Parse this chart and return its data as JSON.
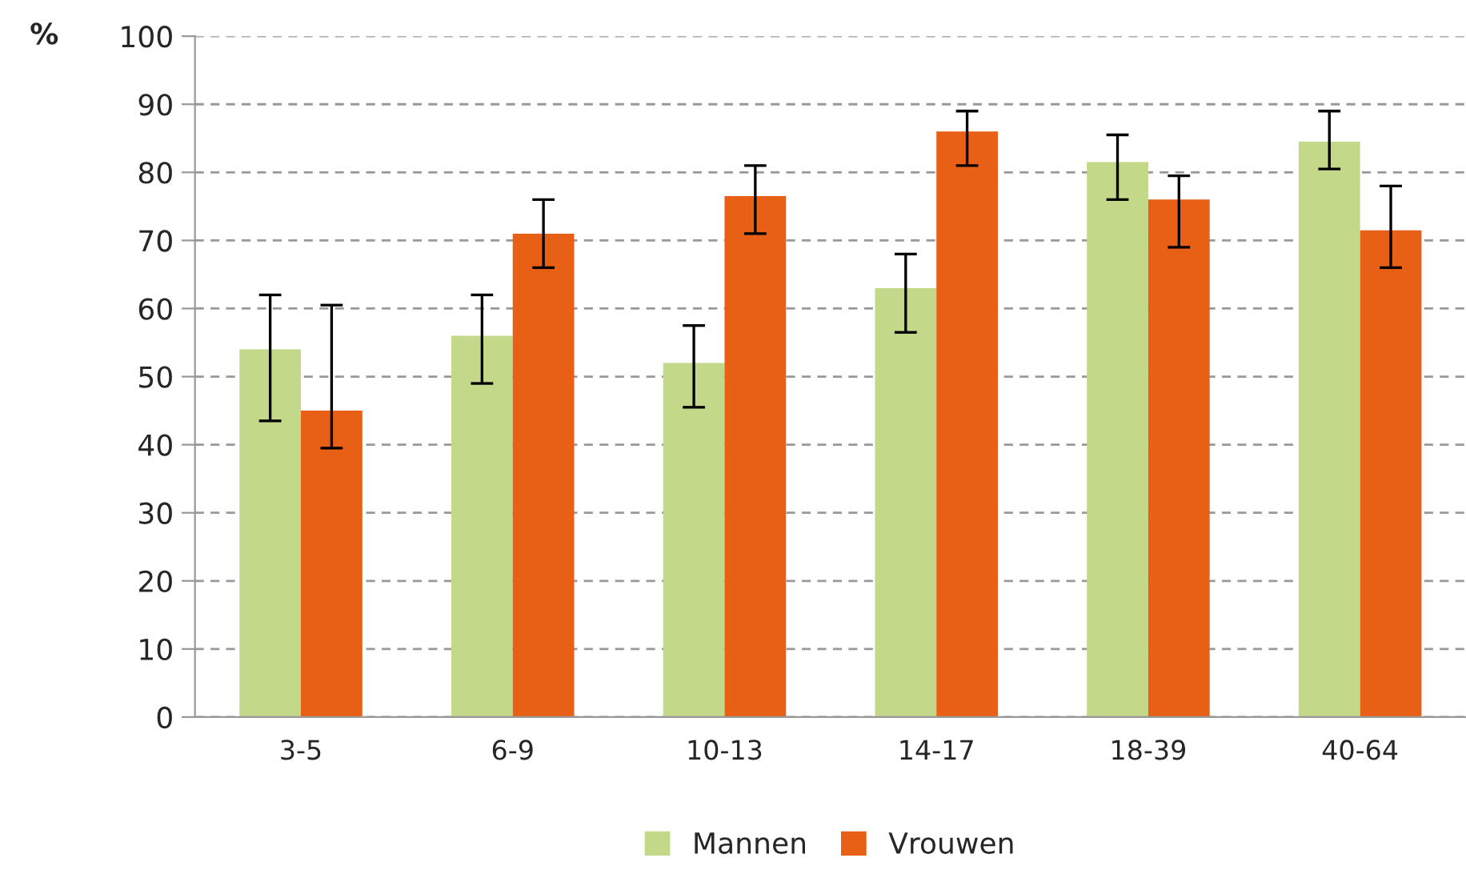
{
  "chart_data": {
    "type": "bar",
    "ylabel": "%",
    "categories": [
      "3-5",
      "6-9",
      "10-13",
      "14-17",
      "18-39",
      "40-64"
    ],
    "series": [
      {
        "name": "Mannen",
        "color": "#c3d888",
        "values": [
          54,
          56,
          52,
          63,
          81.5,
          84.5
        ],
        "errors": [
          [
            43.5,
            62
          ],
          [
            49,
            62
          ],
          [
            45.5,
            57.5
          ],
          [
            56.5,
            68
          ],
          [
            76,
            85.5
          ],
          [
            80.5,
            89
          ]
        ]
      },
      {
        "name": "Vrouwen",
        "color": "#e85f16",
        "values": [
          45,
          71,
          76.5,
          86,
          76,
          71.5
        ],
        "errors": [
          [
            39.5,
            60.5
          ],
          [
            66,
            76
          ],
          [
            71,
            81
          ],
          [
            81,
            89
          ],
          [
            69,
            79.5
          ],
          [
            66,
            78
          ]
        ]
      }
    ],
    "ylim": [
      0,
      100
    ],
    "yticks": [
      0,
      10,
      20,
      30,
      40,
      50,
      60,
      70,
      80,
      90,
      100
    ],
    "grid": "y",
    "legend": "bottom"
  }
}
